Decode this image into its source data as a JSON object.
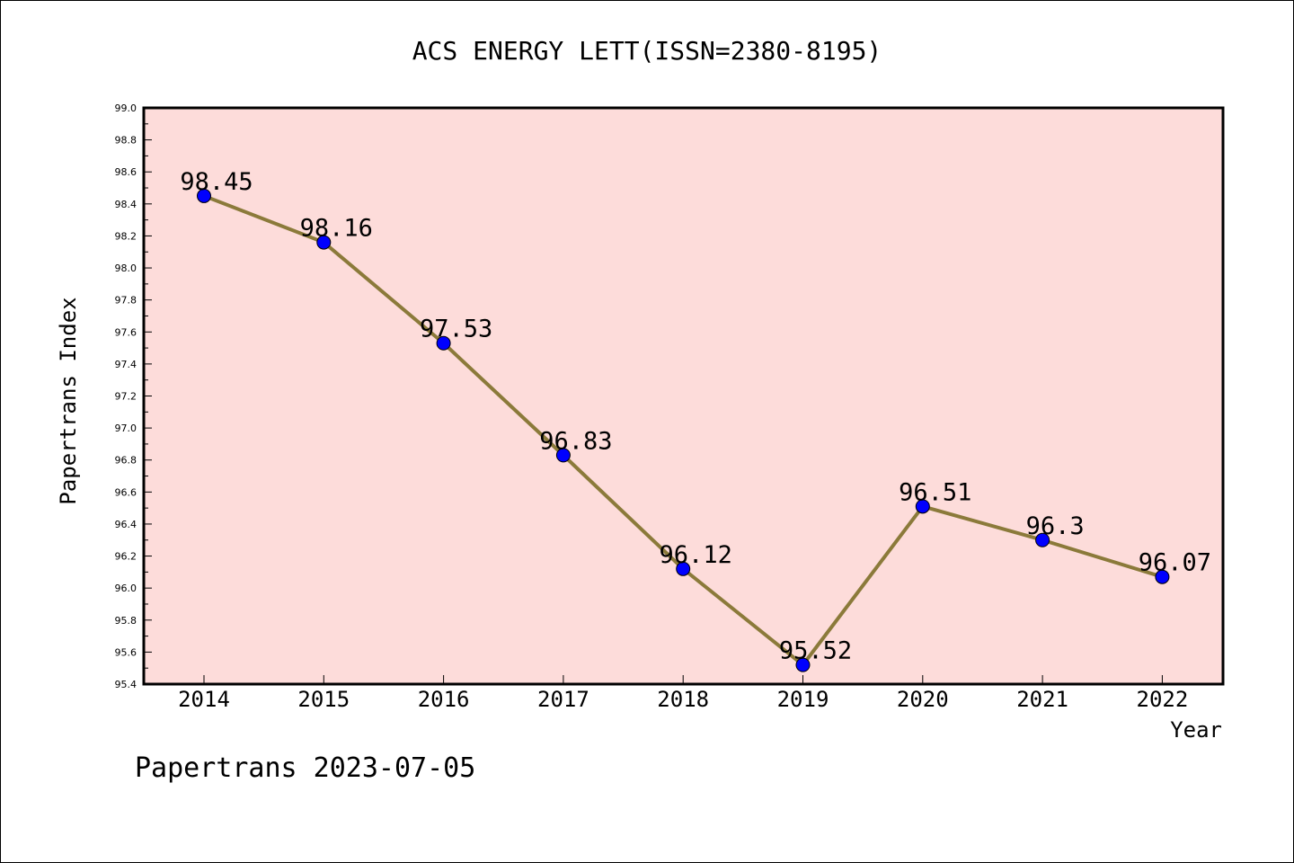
{
  "chart_data": {
    "type": "line",
    "title": "ACS ENERGY LETT(ISSN=2380-8195)",
    "xlabel": "Year",
    "ylabel": "Papertrans Index",
    "categories": [
      "2014",
      "2015",
      "2016",
      "2017",
      "2018",
      "2019",
      "2020",
      "2021",
      "2022"
    ],
    "values": [
      98.45,
      98.16,
      97.53,
      96.83,
      96.12,
      95.52,
      96.51,
      96.3,
      96.07
    ],
    "data_labels": [
      "98.45",
      "98.16",
      "97.53",
      "96.83",
      "96.12",
      "95.52",
      "96.51",
      "96.3",
      "96.07"
    ],
    "ylim": [
      95.4,
      99.0
    ],
    "yticks": [
      "95.4",
      "95.6",
      "95.8",
      "96.0",
      "96.2",
      "96.4",
      "96.6",
      "96.8",
      "97.0",
      "97.2",
      "97.4",
      "97.6",
      "97.8",
      "98.0",
      "98.2",
      "98.4",
      "98.6",
      "98.8",
      "99.0"
    ],
    "grid": false,
    "colors": {
      "plot_background": "#fddcda",
      "line": "#8b7a3a",
      "marker": "#0000ff"
    }
  },
  "footer": "Papertrans 2023-07-05"
}
